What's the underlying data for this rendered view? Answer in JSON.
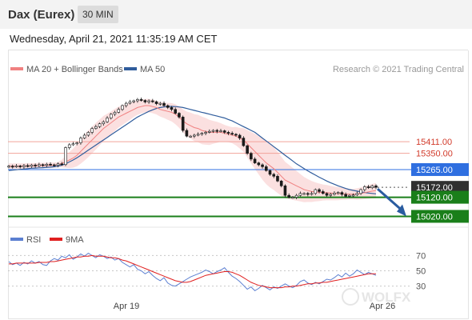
{
  "header": {
    "title": "Dax (Eurex)",
    "timeframe": "30 MIN",
    "datetime": "Wednesday, April 21, 2021 11:35:19 AM CET"
  },
  "legend": {
    "bollinger_label": "MA 20 + Bollinger Bands",
    "ma50_label": "MA 50",
    "credit": "Research © 2021 Trading Central"
  },
  "rsi_legend": {
    "rsi_label": "RSI",
    "ma9_label": "9MA"
  },
  "colors": {
    "ma20": "#f08080",
    "band_fill": "#fbe0e0",
    "ma50": "#2f5c9c",
    "candle": "#1a1a1a",
    "resistance_line": "#f2a39a",
    "resistance_text": "#d23b2b",
    "pivot_blue": "#2f6fe0",
    "current_price": "#303030",
    "support_green": "#1a7f1a",
    "forecast_arrow": "#2a5ca0",
    "rsi_line": "#5b7fd1",
    "rsi_ma": "#e02020",
    "grid_dotted": "#c8c8c8"
  },
  "chart_data": [
    {
      "type": "candlestick",
      "name": "price",
      "ylim": [
        14980,
        15755
      ],
      "x_labels": [
        "Apr 19",
        "Apr 26"
      ],
      "levels": [
        {
          "value": 15411.0,
          "label": "15411.00",
          "kind": "resistance"
        },
        {
          "value": 15350.0,
          "label": "15350.00",
          "kind": "resistance"
        },
        {
          "value": 15265.0,
          "label": "15265.00",
          "kind": "pivot"
        },
        {
          "value": 15172.0,
          "label": "15172.00",
          "kind": "current"
        },
        {
          "value": 15120.0,
          "label": "15120.00",
          "kind": "support"
        },
        {
          "value": 15020.0,
          "label": "15020.00",
          "kind": "support"
        }
      ],
      "close": [
        15283,
        15280,
        15284,
        15279,
        15286,
        15282,
        15289,
        15284,
        15291,
        15287,
        15293,
        15290,
        15287,
        15295,
        15291,
        15380,
        15395,
        15400,
        15405,
        15430,
        15445,
        15460,
        15480,
        15490,
        15505,
        15515,
        15535,
        15555,
        15565,
        15580,
        15600,
        15612,
        15620,
        15625,
        15632,
        15627,
        15619,
        15625,
        15620,
        15610,
        15612,
        15600,
        15590,
        15580,
        15560,
        15540,
        15470,
        15440,
        15440,
        15445,
        15450,
        15455,
        15460,
        15465,
        15470,
        15465,
        15468,
        15460,
        15455,
        15450,
        15445,
        15430,
        15390,
        15350,
        15320,
        15300,
        15290,
        15280,
        15260,
        15240,
        15230,
        15205,
        15180,
        15130,
        15120,
        15120,
        15130,
        15140,
        15140,
        15135,
        15140,
        15160,
        15150,
        15140,
        15130,
        15135,
        15142,
        15145,
        15135,
        15125,
        15130,
        15132,
        15140,
        15160,
        15175,
        15170,
        15180,
        15172
      ],
      "ma20": [
        15283,
        15283,
        15283,
        15283,
        15284,
        15284,
        15285,
        15285,
        15286,
        15286,
        15287,
        15287,
        15288,
        15290,
        15297,
        15305,
        15315,
        15325,
        15340,
        15360,
        15380,
        15400,
        15420,
        15440,
        15460,
        15480,
        15495,
        15510,
        15525,
        15540,
        15550,
        15560,
        15570,
        15580,
        15590,
        15595,
        15600,
        15600,
        15595,
        15590,
        15580,
        15575,
        15570,
        15565,
        15555,
        15540,
        15520,
        15505,
        15495,
        15485,
        15480,
        15470,
        15465,
        15460,
        15460,
        15460,
        15460,
        15455,
        15450,
        15445,
        15440,
        15430,
        15420,
        15400,
        15380,
        15360,
        15340,
        15320,
        15300,
        15285,
        15270,
        15250,
        15230,
        15210,
        15200,
        15190,
        15180,
        15170,
        15160,
        15155,
        15150,
        15148,
        15146,
        15145,
        15144,
        15142,
        15140,
        15139,
        15138,
        15137,
        15136,
        15136,
        15137,
        15140,
        15144,
        15148,
        15152,
        15155
      ],
      "ma50": [
        15260,
        15262,
        15264,
        15266,
        15268,
        15270,
        15272,
        15273,
        15274,
        15275,
        15277,
        15278,
        15280,
        15283,
        15288,
        15295,
        15305,
        15315,
        15327,
        15340,
        15353,
        15367,
        15380,
        15393,
        15407,
        15420,
        15433,
        15447,
        15460,
        15473,
        15487,
        15500,
        15513,
        15527,
        15540,
        15550,
        15560,
        15570,
        15578,
        15585,
        15590,
        15593,
        15595,
        15596,
        15595,
        15593,
        15590,
        15585,
        15580,
        15575,
        15570,
        15565,
        15560,
        15555,
        15550,
        15545,
        15540,
        15535,
        15527,
        15520,
        15510,
        15500,
        15490,
        15480,
        15470,
        15460,
        15445,
        15430,
        15415,
        15400,
        15385,
        15370,
        15355,
        15340,
        15325,
        15310,
        15295,
        15283,
        15270,
        15258,
        15247,
        15236,
        15225,
        15215,
        15205,
        15196,
        15188,
        15180,
        15173,
        15166,
        15160,
        15156,
        15152,
        15148,
        15145,
        15142,
        15140,
        15138
      ],
      "bb_width": [
        14,
        14,
        14,
        14,
        14,
        14,
        14,
        14,
        14,
        14,
        14,
        14,
        14,
        14,
        20,
        30,
        42,
        50,
        58,
        64,
        68,
        70,
        70,
        70,
        68,
        66,
        62,
        60,
        58,
        55,
        52,
        48,
        44,
        40,
        38,
        36,
        35,
        35,
        35,
        36,
        38,
        40,
        44,
        48,
        52,
        56,
        60,
        64,
        68,
        70,
        72,
        72,
        70,
        66,
        60,
        55,
        48,
        44,
        42,
        42,
        48,
        54,
        62,
        72,
        82,
        92,
        100,
        108,
        112,
        114,
        112,
        108,
        102,
        96,
        90,
        84,
        78,
        72,
        66,
        60,
        55,
        50,
        46,
        42,
        40,
        38,
        36,
        34,
        32,
        30,
        28,
        28,
        30,
        32,
        34,
        36,
        38,
        40
      ]
    },
    {
      "type": "line",
      "name": "rsi",
      "ylim": [
        15,
        85
      ],
      "ticks": [
        70,
        50,
        30
      ],
      "rsi": [
        62,
        58,
        60,
        57,
        61,
        59,
        63,
        60,
        62,
        58,
        57,
        63,
        66,
        64,
        69,
        67,
        71,
        65,
        68,
        72,
        69,
        73,
        70,
        67,
        71,
        69,
        66,
        68,
        64,
        66,
        61,
        58,
        55,
        58,
        52,
        50,
        46,
        49,
        44,
        40,
        37,
        41,
        34,
        31,
        30,
        33,
        36,
        39,
        42,
        44,
        46,
        48,
        51,
        49,
        46,
        49,
        51,
        54,
        48,
        43,
        40,
        36,
        31,
        26,
        29,
        24,
        27,
        31,
        28,
        25,
        29,
        27,
        30,
        33,
        30,
        28,
        31,
        36,
        38,
        34,
        32,
        35,
        33,
        36,
        39,
        38,
        41,
        45,
        42,
        47,
        43,
        46,
        51,
        48,
        45,
        48,
        46,
        44
      ],
      "ma9": [
        59,
        59,
        60,
        60,
        60,
        60,
        60,
        60,
        61,
        61,
        61,
        62,
        62,
        63,
        64,
        65,
        66,
        67,
        68,
        68,
        69,
        69,
        70,
        69,
        69,
        69,
        68,
        67,
        67,
        66,
        64,
        63,
        61,
        59,
        57,
        55,
        53,
        51,
        49,
        47,
        45,
        43,
        41,
        39,
        37,
        36,
        35,
        35,
        36,
        38,
        40,
        42,
        44,
        45,
        46,
        47,
        48,
        49,
        49,
        48,
        46,
        44,
        41,
        38,
        35,
        33,
        31,
        30,
        29,
        28,
        28,
        28,
        28,
        29,
        29,
        30,
        30,
        31,
        32,
        33,
        33,
        34,
        34,
        35,
        35,
        36,
        37,
        38,
        39,
        40,
        41,
        42,
        43,
        44,
        45,
        46,
        46,
        46
      ]
    }
  ]
}
